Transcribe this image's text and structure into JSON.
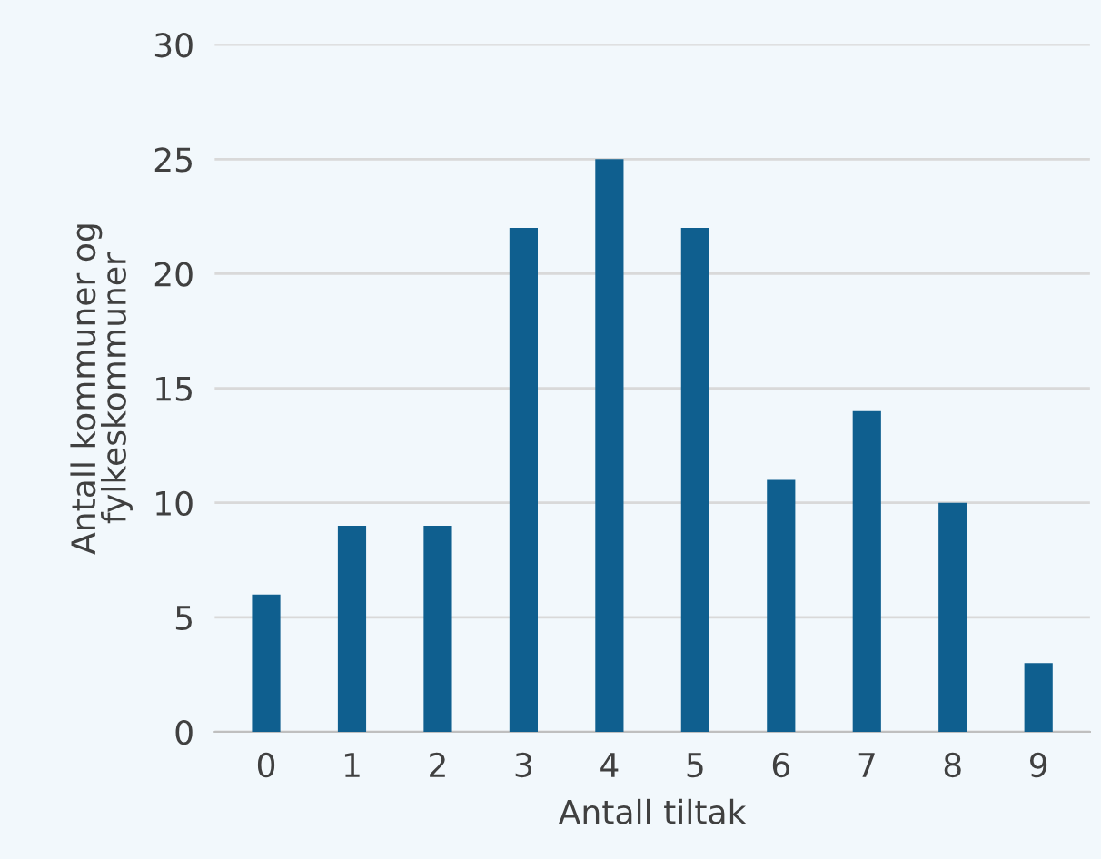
{
  "chart_data": {
    "type": "bar",
    "xlabel": "Antall tiltak",
    "ylabel": "Antall kommuner og\nfylkeskommuner",
    "categories": [
      "0",
      "1",
      "2",
      "3",
      "4",
      "5",
      "6",
      "7",
      "8",
      "9"
    ],
    "values": [
      6,
      9,
      9,
      22,
      25,
      22,
      11,
      14,
      10,
      3
    ],
    "color": "#0f5f8f",
    "ylim": [
      0,
      30
    ],
    "yticks": [
      0,
      5,
      10,
      15,
      20,
      25,
      30
    ],
    "grid": "y"
  }
}
